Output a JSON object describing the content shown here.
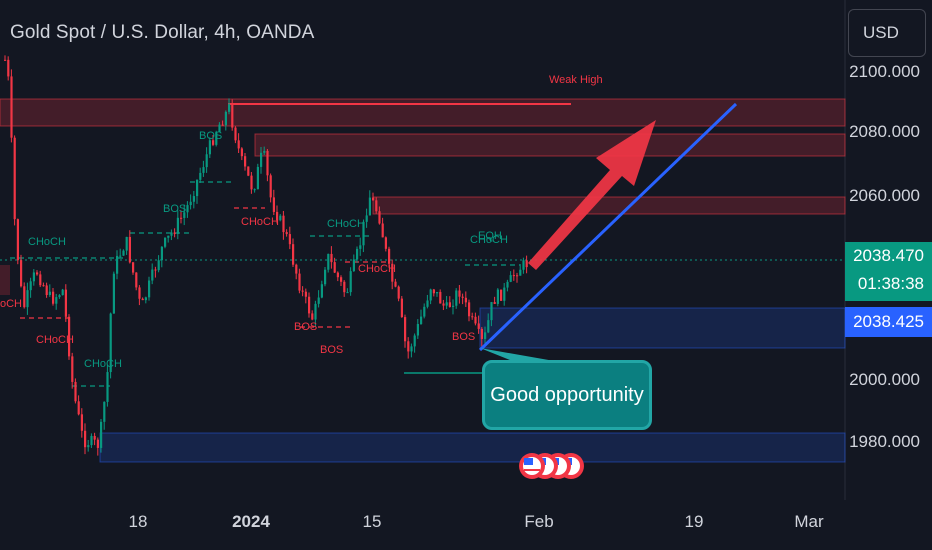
{
  "header": {
    "title": "Gold Spot / U.S. Dollar, 4h, OANDA",
    "currency_label": "USD"
  },
  "price_axis": {
    "ticks": [
      "2100.000",
      "2080.000",
      "2060.000",
      "2000.000",
      "1980.000"
    ]
  },
  "time_axis": {
    "ticks": [
      "18",
      "2024",
      "15",
      "Feb",
      "19",
      "Mar"
    ]
  },
  "tags": {
    "last_price": "2038.470",
    "countdown": "01:38:38",
    "cursor_price": "2038.425"
  },
  "annotation": {
    "callout_text": "Good opportunity",
    "weak_high": "Weak High"
  },
  "labels": {
    "choch_1": "CHoCH",
    "choch_2": "CHoCH",
    "choch_3": "CHoCH",
    "choch_4": "CHoCH",
    "choch_5": "CHoCH",
    "choch_6": "CHoCH",
    "choch_7": "CHoCH",
    "choch_left": "oCH",
    "bos_1": "BOS",
    "bos_2": "BOS",
    "bos_3": "BOS",
    "bos_4": "BOS",
    "bos_5": "BOS",
    "eqh": "EQH"
  },
  "colors": {
    "bull": "#089981",
    "bear": "#f23645",
    "trendline": "#2962ff",
    "arrow": "#f23645",
    "supply_zone": "#f23645",
    "demand_zone": "#1e3a6e",
    "callout": "#0b7f80"
  },
  "events": {
    "icon": "us-flag-icon",
    "count": 4
  }
}
